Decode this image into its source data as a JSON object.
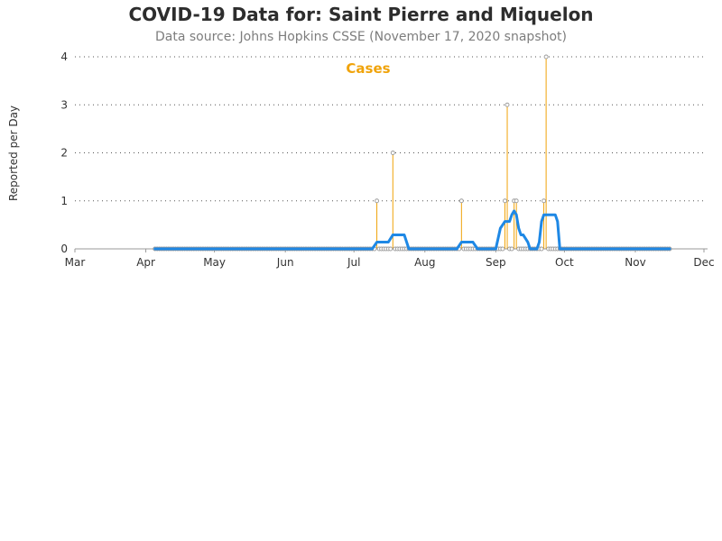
{
  "chart_data": {
    "type": "line",
    "title": "COVID-19 Data for: Saint Pierre and Miquelon",
    "subtitle": "Data source: Johns Hopkins CSSE (November 17, 2020 snapshot)",
    "ylabel": "Reported per Day",
    "xlabel": "",
    "ylim": [
      0,
      4
    ],
    "yticks": [
      0,
      1,
      2,
      3,
      4
    ],
    "xlim": [
      "2020-03-01",
      "2020-12-01"
    ],
    "xticks": [
      {
        "date": "2020-03-01",
        "label": "Mar"
      },
      {
        "date": "2020-04-01",
        "label": "Apr"
      },
      {
        "date": "2020-05-01",
        "label": "May"
      },
      {
        "date": "2020-06-01",
        "label": "Jun"
      },
      {
        "date": "2020-07-01",
        "label": "Jul"
      },
      {
        "date": "2020-08-01",
        "label": "Aug"
      },
      {
        "date": "2020-09-01",
        "label": "Sep"
      },
      {
        "date": "2020-10-01",
        "label": "Oct"
      },
      {
        "date": "2020-11-01",
        "label": "Nov"
      },
      {
        "date": "2020-12-01",
        "label": "Dec"
      }
    ],
    "grid": "horizontal-dotted",
    "series": [
      {
        "name": "Cases",
        "kind": "daily-spikes",
        "color": "#F0A30A",
        "marker_color": "#999999",
        "start": "2020-04-05",
        "end": "2020-11-16",
        "points": [
          {
            "date": "2020-07-11",
            "value": 1
          },
          {
            "date": "2020-07-18",
            "value": 2
          },
          {
            "date": "2020-08-17",
            "value": 1
          },
          {
            "date": "2020-09-05",
            "value": 1
          },
          {
            "date": "2020-09-06",
            "value": 3
          },
          {
            "date": "2020-09-09",
            "value": 1
          },
          {
            "date": "2020-09-10",
            "value": 1
          },
          {
            "date": "2020-09-22",
            "value": 1
          },
          {
            "date": "2020-09-23",
            "value": 4
          }
        ]
      },
      {
        "kind": "moving-average",
        "color": "#1E88E5",
        "points": [
          {
            "date": "2020-04-05",
            "value": 0
          },
          {
            "date": "2020-07-09",
            "value": 0
          },
          {
            "date": "2020-07-11",
            "value": 0.14
          },
          {
            "date": "2020-07-16",
            "value": 0.14
          },
          {
            "date": "2020-07-18",
            "value": 0.29
          },
          {
            "date": "2020-07-23",
            "value": 0.29
          },
          {
            "date": "2020-07-25",
            "value": 0
          },
          {
            "date": "2020-08-15",
            "value": 0
          },
          {
            "date": "2020-08-17",
            "value": 0.14
          },
          {
            "date": "2020-08-22",
            "value": 0.14
          },
          {
            "date": "2020-08-24",
            "value": 0
          },
          {
            "date": "2020-09-01",
            "value": 0
          },
          {
            "date": "2020-09-03",
            "value": 0.43
          },
          {
            "date": "2020-09-05",
            "value": 0.57
          },
          {
            "date": "2020-09-07",
            "value": 0.57
          },
          {
            "date": "2020-09-08",
            "value": 0.71
          },
          {
            "date": "2020-09-09",
            "value": 0.79
          },
          {
            "date": "2020-09-10",
            "value": 0.71
          },
          {
            "date": "2020-09-11",
            "value": 0.43
          },
          {
            "date": "2020-09-12",
            "value": 0.29
          },
          {
            "date": "2020-09-13",
            "value": 0.29
          },
          {
            "date": "2020-09-15",
            "value": 0.14
          },
          {
            "date": "2020-09-16",
            "value": 0
          },
          {
            "date": "2020-09-19",
            "value": 0
          },
          {
            "date": "2020-09-20",
            "value": 0.14
          },
          {
            "date": "2020-09-21",
            "value": 0.57
          },
          {
            "date": "2020-09-22",
            "value": 0.71
          },
          {
            "date": "2020-09-27",
            "value": 0.71
          },
          {
            "date": "2020-09-28",
            "value": 0.57
          },
          {
            "date": "2020-09-29",
            "value": 0
          },
          {
            "date": "2020-11-16",
            "value": 0
          }
        ]
      }
    ],
    "colors": {
      "axis": "#999999",
      "grid": "#555555",
      "title": "#2d2d2d",
      "subtitle": "#7d7d7d"
    }
  }
}
